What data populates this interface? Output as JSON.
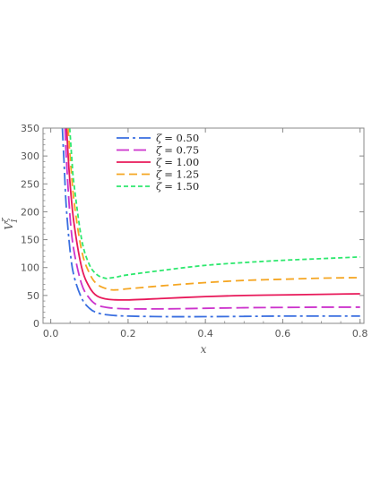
{
  "chart_data": {
    "type": "line",
    "xlabel": "x",
    "ylabel": "V",
    "ylabel_sup": "ζ",
    "ylabel_sub": "1",
    "xlim": [
      -0.02,
      0.81
    ],
    "ylim": [
      0,
      350
    ],
    "xticks": [
      0.0,
      0.2,
      0.4,
      0.6,
      0.8
    ],
    "xtick_labels": [
      "0.0",
      "0.2",
      "0.4",
      "0.6",
      "0.8"
    ],
    "yticks": [
      0,
      50,
      100,
      150,
      200,
      250,
      300,
      350
    ],
    "ytick_labels": [
      "0",
      "50",
      "100",
      "150",
      "200",
      "250",
      "300",
      "350"
    ],
    "grid": false,
    "legend_position": "top-center",
    "series": [
      {
        "name": "ζ = 0.50",
        "legend_symbol": "ζ",
        "legend_value": "= 0.50",
        "color": "#3a6fe0",
        "dash": "14 4 3 4",
        "x": [
          0.03,
          0.035,
          0.04,
          0.05,
          0.06,
          0.08,
          0.1,
          0.12,
          0.15,
          0.2,
          0.3,
          0.4,
          0.5,
          0.6,
          0.7,
          0.8
        ],
        "y": [
          350,
          280,
          210,
          130,
          85,
          45,
          27,
          19,
          15,
          13,
          12,
          12,
          12.5,
          13,
          13,
          13
        ]
      },
      {
        "name": "ζ = 0.75",
        "legend_symbol": "ζ",
        "legend_value": "= 0.75",
        "color": "#cc33cc",
        "dash": "14 5",
        "x": [
          0.037,
          0.04,
          0.05,
          0.06,
          0.08,
          0.1,
          0.12,
          0.15,
          0.2,
          0.3,
          0.4,
          0.5,
          0.6,
          0.7,
          0.8
        ],
        "y": [
          350,
          300,
          190,
          130,
          70,
          45,
          33,
          28,
          26,
          26,
          27,
          28,
          28.5,
          29,
          29
        ]
      },
      {
        "name": "ζ = 1.00",
        "legend_symbol": "ζ",
        "legend_value": "= 1.00",
        "color": "#e8195a",
        "dash": "",
        "x": [
          0.041,
          0.045,
          0.05,
          0.06,
          0.08,
          0.1,
          0.12,
          0.15,
          0.2,
          0.3,
          0.4,
          0.5,
          0.6,
          0.7,
          0.8
        ],
        "y": [
          350,
          300,
          250,
          180,
          100,
          65,
          49,
          43,
          42,
          45,
          48,
          50,
          51,
          52,
          53
        ]
      },
      {
        "name": "ζ = 1.25",
        "legend_symbol": "ζ",
        "legend_value": "= 1.25",
        "color": "#f5a623",
        "dash": "9 5",
        "x": [
          0.045,
          0.05,
          0.06,
          0.08,
          0.1,
          0.12,
          0.15,
          0.17,
          0.2,
          0.3,
          0.4,
          0.5,
          0.6,
          0.7,
          0.8
        ],
        "y": [
          350,
          300,
          220,
          130,
          90,
          70,
          61,
          60,
          62,
          68,
          73,
          77,
          79,
          81,
          82
        ]
      },
      {
        "name": "ζ = 1.50",
        "legend_symbol": "ζ",
        "legend_value": "= 1.50",
        "color": "#2ee86e",
        "dash": "5 3",
        "x": [
          0.049,
          0.055,
          0.06,
          0.08,
          0.1,
          0.12,
          0.14,
          0.15,
          0.17,
          0.2,
          0.3,
          0.4,
          0.5,
          0.6,
          0.7,
          0.8
        ],
        "y": [
          350,
          290,
          250,
          150,
          105,
          87,
          81,
          81,
          83,
          87,
          96,
          104,
          109,
          113,
          116,
          119
        ]
      }
    ]
  }
}
